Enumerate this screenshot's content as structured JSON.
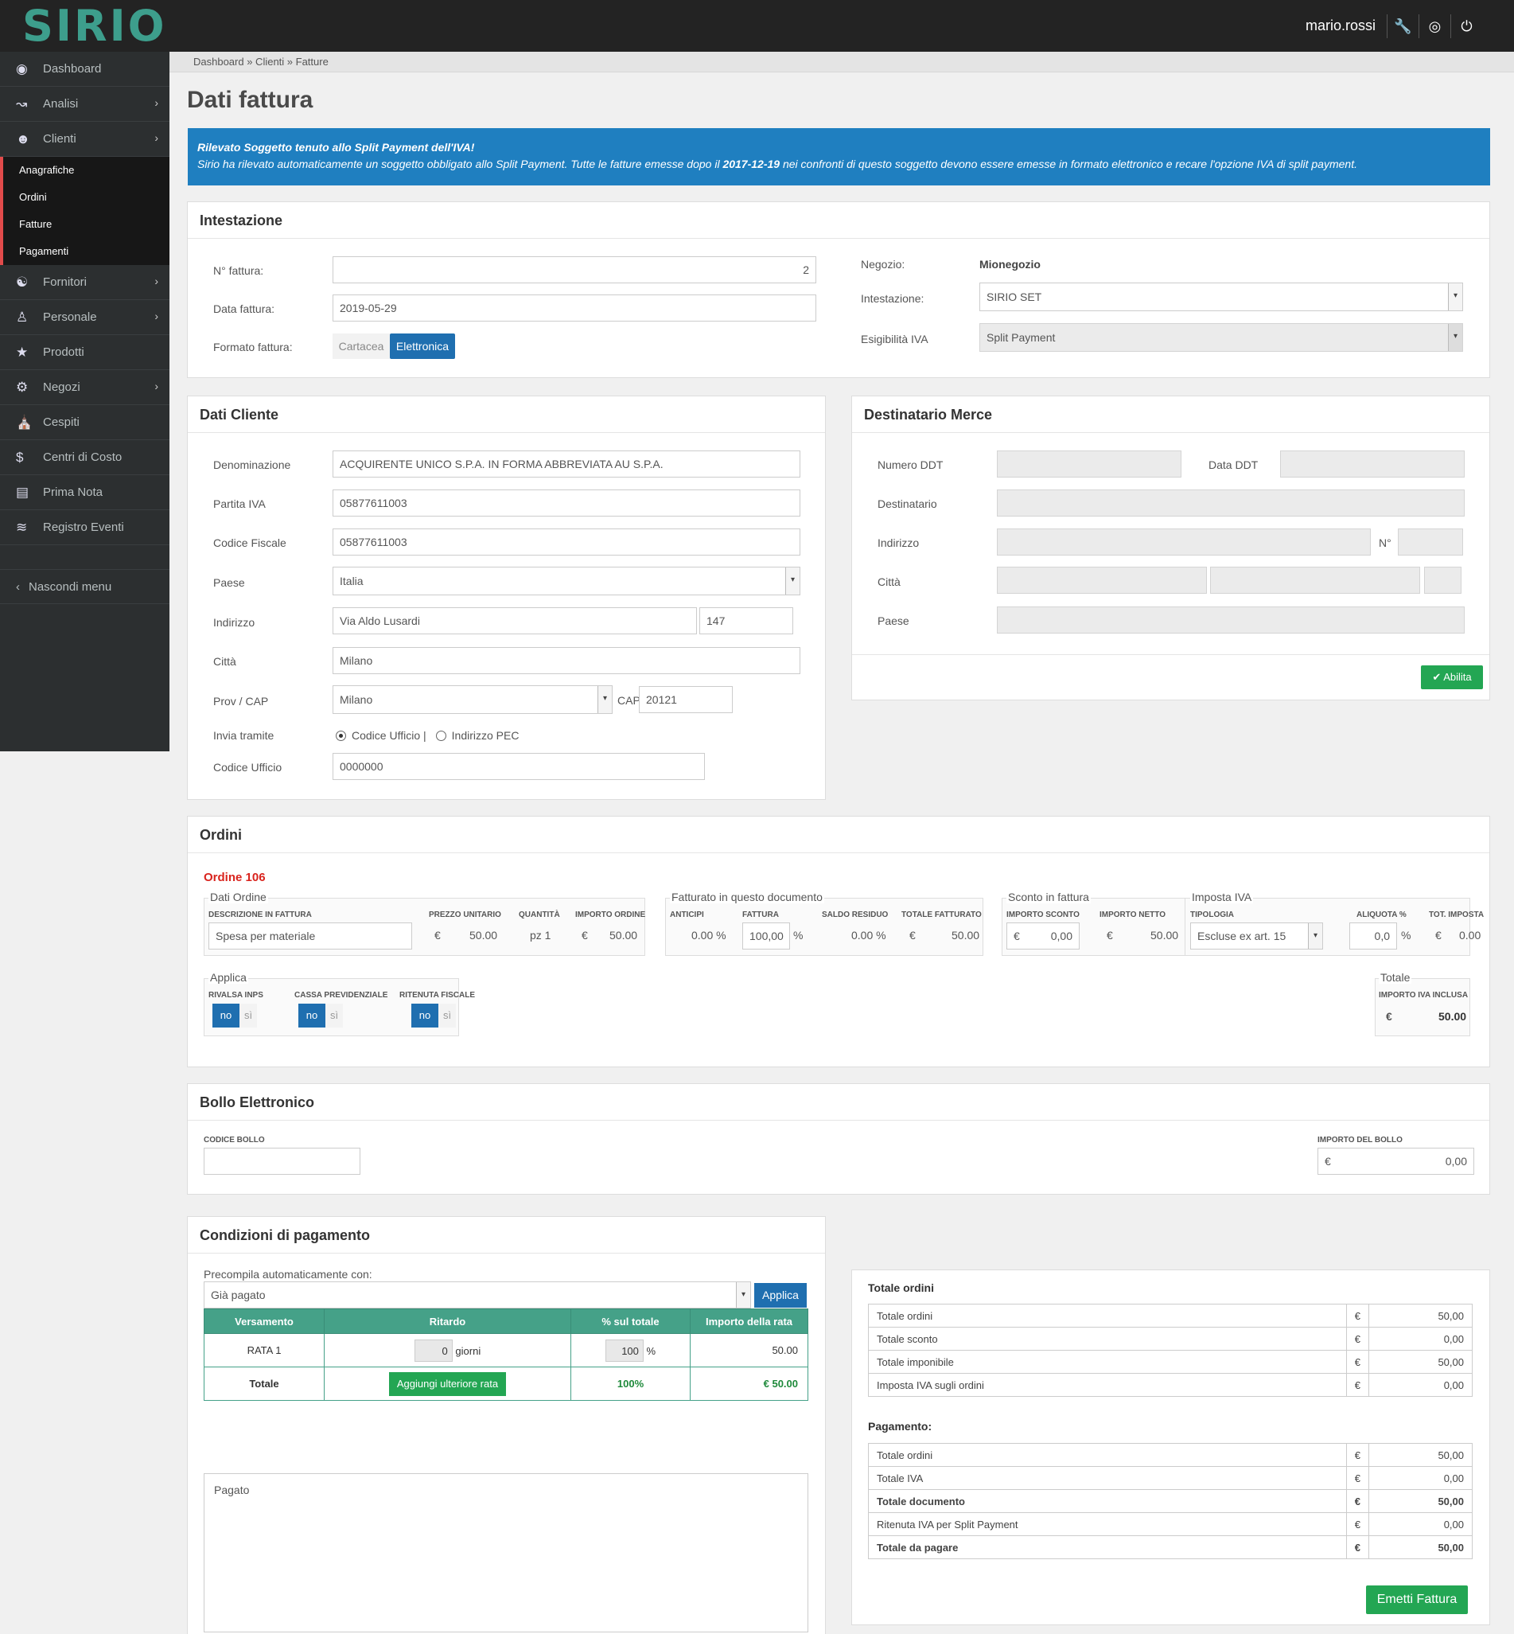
{
  "app": {
    "logo": "SIRIO",
    "user": "mario.rossi",
    "icons": [
      "wrench-icon",
      "lifebuoy-icon",
      "power-icon"
    ]
  },
  "sidebar": {
    "items": [
      {
        "label": "Dashboard",
        "icon": "dashboard-icon"
      },
      {
        "label": "Analisi",
        "icon": "chart-icon"
      },
      {
        "label": "Clienti",
        "icon": "user-icon"
      }
    ],
    "clienti_sub": [
      "Anagrafiche",
      "Ordini",
      "Fatture",
      "Pagamenti"
    ],
    "items2": [
      {
        "label": "Fornitori",
        "icon": "users-icon"
      },
      {
        "label": "Personale",
        "icon": "person-icon"
      },
      {
        "label": "Prodotti",
        "icon": "star-icon"
      },
      {
        "label": "Negozi",
        "icon": "gear-icon"
      },
      {
        "label": "Cespiti",
        "icon": "bank-icon"
      },
      {
        "label": "Centri di Costo",
        "icon": "dollar-icon"
      },
      {
        "label": "Prima Nota",
        "icon": "book-icon"
      },
      {
        "label": "Registro Eventi",
        "icon": "rss-icon"
      }
    ],
    "hide": "Nascondi menu"
  },
  "breadcrumb": "Dashboard » Clienti » Fatture",
  "page_title": "Dati fattura",
  "alert": {
    "title": "Rilevato Soggetto tenuto allo Split Payment dell'IVA!",
    "text_a": "Sirio ha rilevato automaticamente un soggetto obbligato allo Split Payment. Tutte le fatture emesse dopo il ",
    "date": "2017-12-19",
    "text_b": " nei confronti di questo soggetto devono essere emesse in formato elettronico e recare l'opzione IVA di split payment."
  },
  "intestazione": {
    "title": "Intestazione",
    "num_label": "N° fattura:",
    "num": "2",
    "date_label": "Data fattura:",
    "date": "2019-05-29",
    "formato_label": "Formato fattura:",
    "formato_options": [
      "Cartacea",
      "Elettronica"
    ],
    "negozio_label": "Negozio:",
    "negozio": "Mionegozio",
    "intest_label": "Intestazione:",
    "intest": "SIRIO SET",
    "esig_label": "Esigibilità IVA",
    "esig": "Split Payment"
  },
  "cliente": {
    "title": "Dati Cliente",
    "den_label": "Denominazione",
    "den": "ACQUIRENTE UNICO S.P.A. IN FORMA ABBREVIATA AU S.P.A.",
    "piva_label": "Partita IVA",
    "piva": "05877611003",
    "cf_label": "Codice Fiscale",
    "cf": "05877611003",
    "paese_label": "Paese",
    "paese": "Italia",
    "ind_label": "Indirizzo",
    "ind": "Via Aldo Lusardi",
    "civico": "147",
    "citta_label": "Città",
    "citta": "Milano",
    "prov_label": "Prov / CAP",
    "prov": "Milano",
    "cap_label": "CAP",
    "cap": "20121",
    "invia_label": "Invia tramite",
    "opt1": "Codice Ufficio |",
    "opt2": "Indirizzo PEC",
    "cu_label": "Codice Ufficio",
    "cu": "0000000"
  },
  "destinatario": {
    "title": "Destinatario Merce",
    "ddt_label": "Numero DDT",
    "data_ddt_label": "Data DDT",
    "dest_label": "Destinatario",
    "ind_label": "Indirizzo",
    "n_label": "N°",
    "citta_label": "Città",
    "paese_label": "Paese",
    "abilita": "Abilita"
  },
  "ordini": {
    "title": "Ordini",
    "ordine": "Ordine 106",
    "dati_title": "Dati Ordine",
    "h_desc": "DESCRIZIONE IN FATTURA",
    "h_prezzo": "PREZZO UNITARIO",
    "h_qta": "QUANTITÀ",
    "h_importo": "IMPORTO ORDINE",
    "desc": "Spesa per materiale",
    "prezzo": "50.00",
    "qta": "pz 1",
    "importo": "50.00",
    "fatt_title": "Fatturato in questo documento",
    "h_anticipi": "ANTICIPI",
    "h_fattura": "FATTURA",
    "h_saldo": "SALDO RESIDUO",
    "h_totfatt": "TOTALE FATTURATO",
    "anticipi": "0.00 %",
    "fattura": "100,00",
    "saldo": "0.00 %",
    "totfatt": "50.00",
    "sconto_title": "Sconto in fattura",
    "h_imp_sconto": "IMPORTO SCONTO",
    "h_imp_netto": "IMPORTO NETTO",
    "imp_sconto": "0,00",
    "imp_netto": "50.00",
    "iva_title": "Imposta IVA",
    "h_tipologia": "TIPOLOGIA",
    "h_aliquota": "ALIQUOTA %",
    "h_tot_imposta": "TOT. IMPOSTA",
    "tipologia": "Escluse ex art. 15",
    "aliquota": "0,0",
    "tot_imposta": "0.00",
    "applica_title": "Applica",
    "h_rivalsa": "RIVALSA INPS",
    "h_cassa": "CASSA PREVIDENZIALE",
    "h_ritenuta": "RITENUTA FISCALE",
    "no": "no",
    "si": "sì",
    "totale_title": "Totale",
    "h_imp_iva": "IMPORTO IVA INCLUSA",
    "totale": "50.00",
    "euro": "€",
    "pct": "%"
  },
  "bollo": {
    "title": "Bollo Elettronico",
    "h_codice": "CODICE BOLLO",
    "h_importo": "IMPORTO DEL BOLLO",
    "importo": "0,00"
  },
  "pagamento": {
    "title": "Condizioni di pagamento",
    "precompila": "Precompila automaticamente con:",
    "preset": "Già pagato",
    "applica": "Applica",
    "cols": [
      "Versamento",
      "Ritardo",
      "% sul totale",
      "Importo della rata"
    ],
    "rata": "RATA 1",
    "ritardo": "0",
    "giorni": "giorni",
    "perc": "100",
    "importo": "50.00",
    "totale": "Totale",
    "aggiungi": "Aggiungi ulteriore rata",
    "tot_perc": "100%",
    "tot_importo": "€ 50.00",
    "note": "Pagato"
  },
  "totali": {
    "ordini_title": "Totale ordini",
    "ordini_rows": [
      {
        "label": "Totale ordini",
        "value": "50,00"
      },
      {
        "label": "Totale sconto",
        "value": "0,00"
      },
      {
        "label": "Totale imponibile",
        "value": "50,00"
      },
      {
        "label": "Imposta IVA sugli ordini",
        "value": "0,00"
      }
    ],
    "pag_title": "Pagamento:",
    "pag_rows": [
      {
        "label": "Totale ordini",
        "value": "50,00"
      },
      {
        "label": "Totale IVA",
        "value": "0,00"
      },
      {
        "label": "Totale documento",
        "value": "50,00"
      },
      {
        "label": "Ritenuta IVA per Split Payment",
        "value": "0,00"
      },
      {
        "label": "Totale da pagare",
        "value": "50,00"
      }
    ],
    "euro": "€",
    "emetti": "Emetti Fattura"
  }
}
